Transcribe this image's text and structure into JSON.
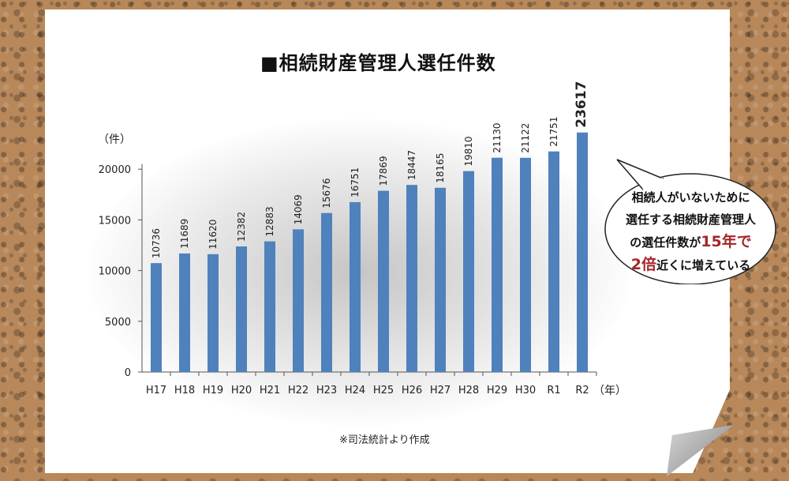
{
  "chart_data": {
    "type": "bar",
    "title": "■相続財産管理人選任件数",
    "ylabel": "（件）",
    "xlabel": "（年）",
    "categories": [
      "H17",
      "H18",
      "H19",
      "H20",
      "H21",
      "H22",
      "H23",
      "H24",
      "H25",
      "H26",
      "H27",
      "H28",
      "H29",
      "H30",
      "R1",
      "R2"
    ],
    "values": [
      10736,
      11689,
      11620,
      12382,
      12883,
      14069,
      15676,
      16751,
      17869,
      18447,
      18165,
      19810,
      21130,
      21122,
      21751,
      23617
    ],
    "data_labels": [
      "10736",
      "11689",
      "11620",
      "12382",
      "12883",
      "14069",
      "15676",
      "16751",
      "17869",
      "18447",
      "18165",
      "19810",
      "21130",
      "21122",
      "21751",
      "23617"
    ],
    "yticks": [
      "0",
      "5000",
      "10000",
      "15000",
      "20000"
    ],
    "ylim": [
      0,
      25000
    ],
    "grid": false,
    "bar_color": "#4f81bd",
    "source_note": "※司法統計より作成"
  },
  "callout": {
    "line1": "相続人がいないために",
    "line2": "選任する相続財産管理人",
    "line3_pre": "の選任件数が",
    "line3_highlight": "15年で",
    "line4_highlight": "2倍",
    "line4_post": "近くに増えている",
    "highlight_color": "#a5252a"
  }
}
